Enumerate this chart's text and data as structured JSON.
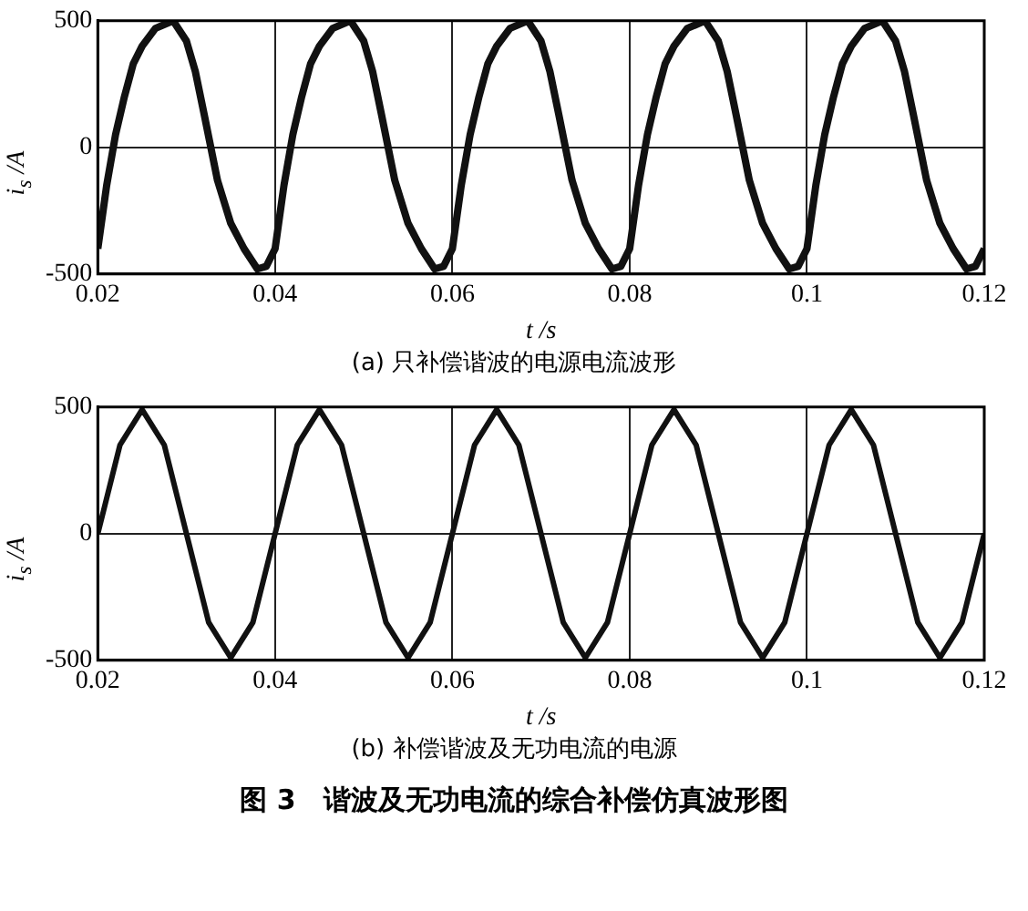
{
  "chart_data": [
    {
      "type": "line",
      "xlabel": "t /s",
      "ylabel": "i$_{s}$ /A",
      "annotations": [
        "(a) 只补偿谐波的电源电流波形"
      ],
      "xlim": [
        0.02,
        0.12
      ],
      "ylim": [
        -500,
        500
      ],
      "xticks": [
        0.02,
        0.04,
        0.06,
        0.08,
        0.1,
        0.12
      ],
      "yticks": [
        -500,
        0,
        500
      ],
      "grid": true,
      "legend": false,
      "marker": "none",
      "line_style": "solid",
      "series": [
        {
          "color": "#111111",
          "x": [
            0.02,
            0.021,
            0.022,
            0.023,
            0.024,
            0.025,
            0.0265,
            0.0285,
            0.03,
            0.031,
            0.032,
            0.0335,
            0.035,
            0.0365,
            0.038,
            0.039,
            0.04,
            0.041,
            0.042,
            0.043,
            0.044,
            0.045,
            0.0465,
            0.0485,
            0.05,
            0.051,
            0.052,
            0.0535,
            0.055,
            0.0565,
            0.058,
            0.059,
            0.06,
            0.061,
            0.062,
            0.063,
            0.064,
            0.065,
            0.0665,
            0.0685,
            0.07,
            0.071,
            0.072,
            0.0735,
            0.075,
            0.0765,
            0.078,
            0.079,
            0.08,
            0.081,
            0.082,
            0.083,
            0.084,
            0.085,
            0.0865,
            0.0885,
            0.09,
            0.091,
            0.092,
            0.0935,
            0.095,
            0.0965,
            0.098,
            0.099,
            0.1,
            0.101,
            0.102,
            0.103,
            0.104,
            0.105,
            0.1065,
            0.1085,
            0.11,
            0.111,
            0.112,
            0.1135,
            0.115,
            0.1165,
            0.118,
            0.119,
            0.12
          ],
          "values": [
            -400,
            -150,
            50,
            200,
            330,
            400,
            470,
            500,
            420,
            300,
            130,
            -130,
            -300,
            -400,
            -480,
            -470,
            -400,
            -150,
            50,
            200,
            330,
            400,
            470,
            500,
            420,
            300,
            130,
            -130,
            -300,
            -400,
            -480,
            -470,
            -400,
            -150,
            50,
            200,
            330,
            400,
            470,
            500,
            420,
            300,
            130,
            -130,
            -300,
            -400,
            -480,
            -470,
            -400,
            -150,
            50,
            200,
            330,
            400,
            470,
            500,
            420,
            300,
            130,
            -130,
            -300,
            -400,
            -480,
            -470,
            -400,
            -150,
            50,
            200,
            330,
            400,
            470,
            500,
            420,
            300,
            130,
            -130,
            -300,
            -400,
            -480,
            -470,
            -400
          ]
        }
      ]
    },
    {
      "type": "line",
      "xlabel": "t /s",
      "ylabel": "i$_{s}$ /A",
      "annotations": [
        "(b) 补偿谐波及无功电流的电源",
        "图 3　谐波及无功电流的综合补偿仿真波形图"
      ],
      "xlim": [
        0.02,
        0.12
      ],
      "ylim": [
        -500,
        500
      ],
      "xticks": [
        0.02,
        0.04,
        0.06,
        0.08,
        0.1,
        0.12
      ],
      "yticks": [
        -500,
        0,
        500
      ],
      "grid": true,
      "legend": false,
      "marker": "none",
      "line_style": "solid",
      "series": [
        {
          "color": "#111111",
          "x": [
            0.02,
            0.0225,
            0.025,
            0.0275,
            0.03,
            0.0325,
            0.035,
            0.0375,
            0.04,
            0.0425,
            0.045,
            0.0475,
            0.05,
            0.0525,
            0.055,
            0.0575,
            0.06,
            0.0625,
            0.065,
            0.0675,
            0.07,
            0.0725,
            0.075,
            0.0775,
            0.08,
            0.0825,
            0.085,
            0.0875,
            0.09,
            0.0925,
            0.095,
            0.0975,
            0.1,
            0.1025,
            0.105,
            0.1075,
            0.11,
            0.1125,
            0.115,
            0.1175,
            0.12
          ],
          "values": [
            0,
            350,
            490,
            350,
            0,
            -350,
            -490,
            -350,
            0,
            350,
            490,
            350,
            0,
            -350,
            -490,
            -350,
            0,
            350,
            490,
            350,
            0,
            -350,
            -490,
            -350,
            0,
            350,
            490,
            350,
            0,
            -350,
            -490,
            -350,
            0,
            350,
            490,
            350,
            0,
            -350,
            -490,
            -350,
            0
          ]
        }
      ]
    }
  ]
}
